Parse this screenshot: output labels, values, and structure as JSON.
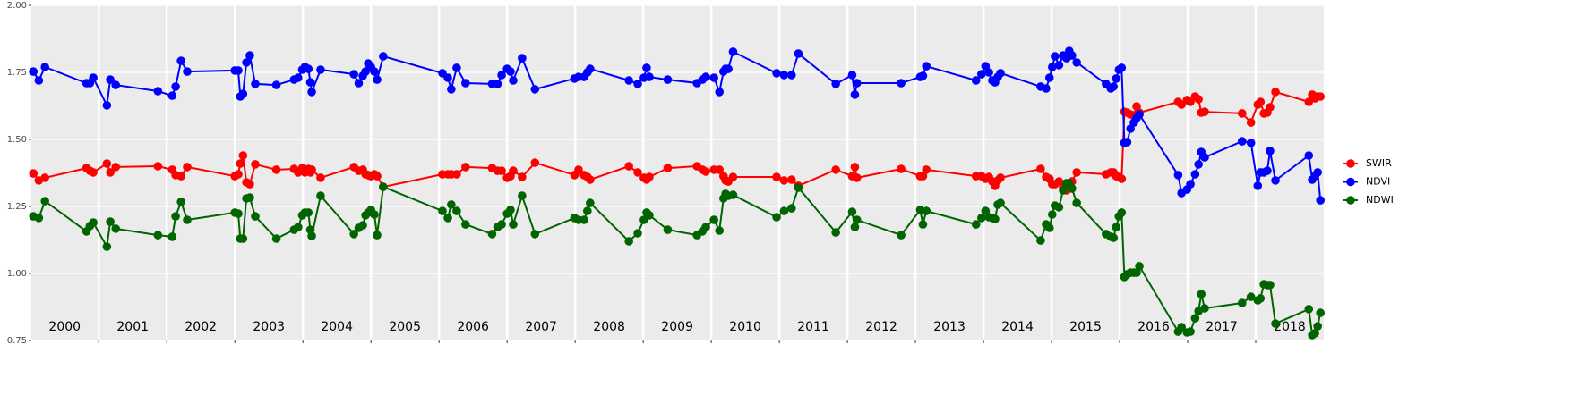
{
  "chart_data": {
    "type": "line",
    "xlim": [
      2000.01,
      2019.0
    ],
    "xticks": [
      2001,
      2002,
      2003,
      2004,
      2005,
      2006,
      2007,
      2008,
      2009,
      2010,
      2011,
      2012,
      2013,
      2014,
      2015,
      2016,
      2017,
      2018
    ],
    "year_labels": [
      "2000",
      "2001",
      "2002",
      "2003",
      "2004",
      "2005",
      "2006",
      "2007",
      "2008",
      "2009",
      "2010",
      "2011",
      "2012",
      "2013",
      "2014",
      "2015",
      "2016",
      "2017",
      "2018"
    ],
    "ylim": [
      0.75,
      2.0
    ],
    "yticks": [
      {
        "value": 0.75,
        "label": "0.75"
      },
      {
        "value": 1,
        "label": "1.00"
      },
      {
        "value": 1.25,
        "label": "1.25"
      },
      {
        "value": 1.5,
        "label": "1.50"
      },
      {
        "value": 1.75,
        "label": "1.75"
      },
      {
        "value": 2,
        "label": "2.00"
      }
    ],
    "grid": true,
    "legend": "right",
    "x": [
      2000.04,
      2000.12,
      2000.21,
      2000.82,
      2000.87,
      2000.92,
      2001.12,
      2001.17,
      2001.25,
      2001.87,
      2002.08,
      2002.13,
      2002.21,
      2002.3,
      2003.0,
      2003.05,
      2003.08,
      2003.12,
      2003.17,
      2003.22,
      2003.3,
      2003.61,
      2003.87,
      2003.93,
      2003.99,
      2004.03,
      2004.08,
      2004.11,
      2004.13,
      2004.26,
      2004.75,
      2004.82,
      2004.88,
      2004.92,
      2004.96,
      2005.0,
      2005.05,
      2005.09,
      2005.18,
      2006.05,
      2006.13,
      2006.18,
      2006.26,
      2006.39,
      2006.78,
      2006.86,
      2006.92,
      2007.0,
      2007.05,
      2007.09,
      2007.22,
      2007.41,
      2007.99,
      2008.05,
      2008.13,
      2008.18,
      2008.22,
      2008.79,
      2008.92,
      2009.01,
      2009.05,
      2009.09,
      2009.36,
      2009.79,
      2009.87,
      2009.92,
      2010.04,
      2010.12,
      2010.18,
      2010.21,
      2010.25,
      2010.32,
      2010.96,
      2011.07,
      2011.18,
      2011.28,
      2011.83,
      2012.07,
      2012.11,
      2012.14,
      2012.79,
      2013.07,
      2013.11,
      2013.16,
      2013.89,
      2013.97,
      2014.03,
      2014.08,
      2014.13,
      2014.17,
      2014.21,
      2014.25,
      2014.84,
      2014.92,
      2014.97,
      2015.01,
      2015.05,
      2015.11,
      2015.17,
      2015.22,
      2015.26,
      2015.3,
      2015.37,
      2015.8,
      2015.87,
      2015.91,
      2015.95,
      2015.99,
      2016.03,
      2016.07,
      2016.11,
      2016.16,
      2016.21,
      2016.25,
      2016.29,
      2016.86,
      2016.91,
      2016.99,
      2017.04,
      2017.11,
      2017.16,
      2017.2,
      2017.25,
      2017.8,
      2017.93,
      2018.03,
      2018.07,
      2018.12,
      2018.17,
      2018.21,
      2018.29,
      2018.78,
      2018.83,
      2018.87,
      2018.91,
      2018.95
    ],
    "series": [
      {
        "name": "SWIR",
        "color": "#ff0000",
        "values": [
          1.373,
          1.347,
          1.357,
          1.393,
          1.383,
          1.377,
          1.41,
          1.377,
          1.397,
          1.4,
          1.387,
          1.367,
          1.363,
          1.397,
          1.363,
          1.37,
          1.41,
          1.44,
          1.34,
          1.333,
          1.407,
          1.387,
          1.39,
          1.377,
          1.393,
          1.377,
          1.39,
          1.377,
          1.387,
          1.357,
          1.397,
          1.383,
          1.387,
          1.37,
          1.367,
          1.363,
          1.37,
          1.363,
          1.323,
          1.37,
          1.37,
          1.37,
          1.37,
          1.397,
          1.393,
          1.383,
          1.383,
          1.357,
          1.363,
          1.383,
          1.36,
          1.413,
          1.367,
          1.387,
          1.367,
          1.36,
          1.35,
          1.4,
          1.377,
          1.357,
          1.35,
          1.36,
          1.393,
          1.4,
          1.387,
          1.38,
          1.387,
          1.387,
          1.363,
          1.347,
          1.343,
          1.36,
          1.36,
          1.347,
          1.35,
          1.327,
          1.387,
          1.363,
          1.397,
          1.357,
          1.39,
          1.363,
          1.363,
          1.387,
          1.363,
          1.363,
          1.353,
          1.36,
          1.343,
          1.327,
          1.347,
          1.357,
          1.39,
          1.36,
          1.353,
          1.333,
          1.333,
          1.343,
          1.32,
          1.31,
          1.327,
          1.343,
          1.377,
          1.37,
          1.377,
          1.377,
          1.363,
          1.36,
          1.353,
          1.603,
          1.6,
          1.593,
          1.59,
          1.623,
          1.6,
          1.64,
          1.63,
          1.647,
          1.64,
          1.66,
          1.65,
          1.6,
          1.603,
          1.597,
          1.563,
          1.63,
          1.64,
          1.597,
          1.6,
          1.62,
          1.677,
          1.64,
          1.667,
          1.653,
          1.66,
          1.66
        ]
      },
      {
        "name": "NDVI",
        "color": "#0000ff",
        "values": [
          1.753,
          1.72,
          1.77,
          1.71,
          1.71,
          1.73,
          1.627,
          1.723,
          1.703,
          1.68,
          1.663,
          1.697,
          1.793,
          1.753,
          1.757,
          1.757,
          1.66,
          1.67,
          1.787,
          1.813,
          1.707,
          1.703,
          1.723,
          1.73,
          1.76,
          1.77,
          1.763,
          1.713,
          1.677,
          1.76,
          1.743,
          1.71,
          1.737,
          1.753,
          1.783,
          1.77,
          1.753,
          1.723,
          1.81,
          1.747,
          1.73,
          1.687,
          1.767,
          1.71,
          1.707,
          1.707,
          1.74,
          1.763,
          1.753,
          1.72,
          1.803,
          1.687,
          1.727,
          1.733,
          1.733,
          1.75,
          1.763,
          1.72,
          1.707,
          1.73,
          1.767,
          1.733,
          1.723,
          1.71,
          1.723,
          1.733,
          1.73,
          1.677,
          1.753,
          1.763,
          1.763,
          1.827,
          1.747,
          1.74,
          1.74,
          1.82,
          1.707,
          1.74,
          1.667,
          1.71,
          1.71,
          1.733,
          1.737,
          1.773,
          1.72,
          1.743,
          1.773,
          1.75,
          1.72,
          1.713,
          1.733,
          1.747,
          1.697,
          1.69,
          1.73,
          1.77,
          1.81,
          1.777,
          1.813,
          1.803,
          1.83,
          1.813,
          1.787,
          1.707,
          1.69,
          1.697,
          1.727,
          1.76,
          1.767,
          1.487,
          1.49,
          1.54,
          1.563,
          1.58,
          1.593,
          1.367,
          1.3,
          1.313,
          1.333,
          1.37,
          1.407,
          1.453,
          1.433,
          1.493,
          1.487,
          1.327,
          1.377,
          1.377,
          1.383,
          1.457,
          1.347,
          1.44,
          1.35,
          1.363,
          1.377,
          1.273
        ]
      },
      {
        "name": "NDWI",
        "color": "#006400",
        "values": [
          1.213,
          1.207,
          1.27,
          1.157,
          1.177,
          1.19,
          1.1,
          1.193,
          1.167,
          1.143,
          1.137,
          1.213,
          1.267,
          1.2,
          1.227,
          1.223,
          1.13,
          1.13,
          1.28,
          1.283,
          1.213,
          1.13,
          1.163,
          1.173,
          1.217,
          1.227,
          1.227,
          1.163,
          1.14,
          1.29,
          1.147,
          1.17,
          1.18,
          1.217,
          1.227,
          1.237,
          1.22,
          1.143,
          1.323,
          1.233,
          1.207,
          1.257,
          1.233,
          1.183,
          1.147,
          1.173,
          1.183,
          1.223,
          1.237,
          1.183,
          1.29,
          1.147,
          1.207,
          1.2,
          1.2,
          1.233,
          1.263,
          1.12,
          1.15,
          1.2,
          1.227,
          1.217,
          1.163,
          1.143,
          1.157,
          1.173,
          1.2,
          1.16,
          1.28,
          1.297,
          1.29,
          1.293,
          1.21,
          1.233,
          1.243,
          1.32,
          1.153,
          1.23,
          1.173,
          1.2,
          1.143,
          1.237,
          1.183,
          1.233,
          1.183,
          1.207,
          1.233,
          1.21,
          1.207,
          1.203,
          1.257,
          1.263,
          1.123,
          1.183,
          1.17,
          1.22,
          1.253,
          1.247,
          1.31,
          1.337,
          1.337,
          1.317,
          1.263,
          1.147,
          1.137,
          1.133,
          1.173,
          1.213,
          1.227,
          0.987,
          0.997,
          1.003,
          1.003,
          1.003,
          1.027,
          0.783,
          0.8,
          0.78,
          0.783,
          0.833,
          0.86,
          0.923,
          0.87,
          0.89,
          0.913,
          0.9,
          0.907,
          0.96,
          0.957,
          0.957,
          0.813,
          0.867,
          0.77,
          0.777,
          0.803,
          0.853
        ]
      }
    ]
  }
}
